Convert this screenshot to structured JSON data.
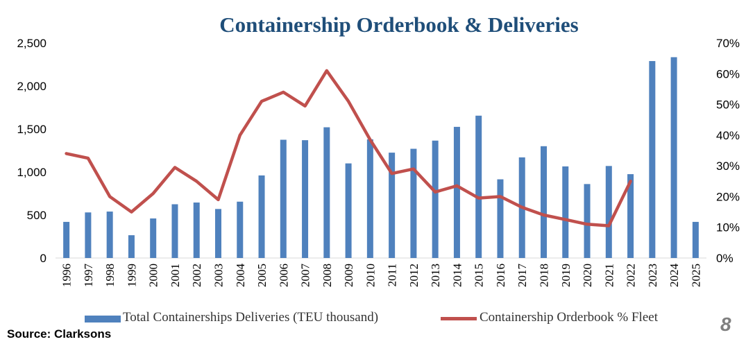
{
  "title": "Containership Orderbook & Deliveries",
  "source": "Source: Clarksons",
  "page_number": "8",
  "colors": {
    "bars": "#4f81bd",
    "line": "#c0504d",
    "title": "#1f4e79"
  },
  "legend": {
    "bars_label": "Total Containerships Deliveries (TEU thousand)",
    "line_label": "Containership Orderbook % Fleet"
  },
  "chart_data": {
    "type": "bar",
    "title": "Containership Orderbook & Deliveries",
    "categories": [
      "1996",
      "1997",
      "1998",
      "1999",
      "2000",
      "2001",
      "2002",
      "2003",
      "2004",
      "2005",
      "2006",
      "2007",
      "2008",
      "2009",
      "2010",
      "2011",
      "2012",
      "2013",
      "2014",
      "2015",
      "2016",
      "2017",
      "2018",
      "2019",
      "2020",
      "2021",
      "2022",
      "2023",
      "2024",
      "2025"
    ],
    "series": [
      {
        "name": "Total Containerships Deliveries (TEU thousand)",
        "type": "bar",
        "axis": "left",
        "values": [
          420,
          530,
          540,
          265,
          460,
          625,
          645,
          570,
          655,
          960,
          1375,
          1370,
          1520,
          1100,
          1380,
          1225,
          1270,
          1365,
          1525,
          1655,
          915,
          1170,
          1300,
          1065,
          860,
          1070,
          975,
          2290,
          2335,
          420
        ]
      },
      {
        "name": "Containership Orderbook % Fleet",
        "type": "line",
        "axis": "right",
        "values": [
          34,
          32.5,
          20,
          15,
          21,
          29.5,
          25,
          19,
          40,
          51,
          54,
          49.5,
          61,
          51,
          38.5,
          27.5,
          29,
          21.5,
          23.5,
          19.5,
          20,
          16.5,
          14,
          12.5,
          11,
          10.5,
          25,
          null,
          null,
          null
        ]
      }
    ],
    "y_left": {
      "min": 0,
      "max": 2500,
      "ticks": [
        0,
        500,
        1000,
        1500,
        2000,
        2500
      ],
      "tick_labels": [
        "0",
        "500",
        "1,000",
        "1,500",
        "2,000",
        "2,500"
      ]
    },
    "y_right": {
      "min": 0,
      "max": 70,
      "ticks": [
        0,
        10,
        20,
        30,
        40,
        50,
        60,
        70
      ],
      "tick_labels": [
        "0%",
        "10%",
        "20%",
        "30%",
        "40%",
        "50%",
        "60%",
        "70%"
      ]
    },
    "grid": false,
    "legend_position": "bottom"
  }
}
